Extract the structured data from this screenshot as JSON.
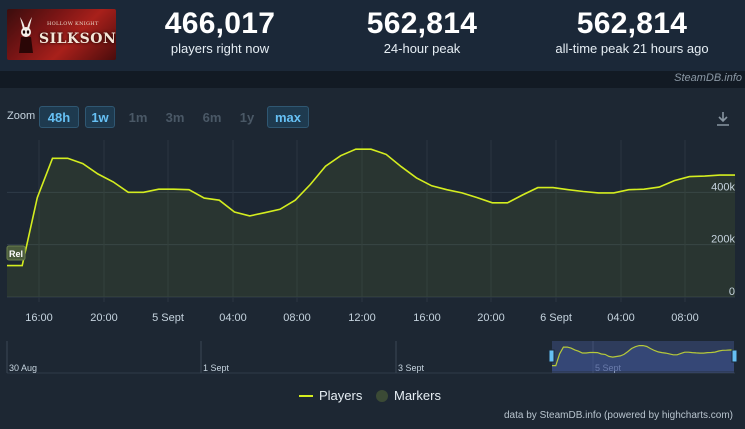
{
  "game": {
    "logo_title": "SILKSONG",
    "logo_subtitle": "HOLLOW KNIGHT"
  },
  "stats": [
    {
      "value": "466,017",
      "label": "players right now"
    },
    {
      "value": "562,814",
      "label": "24-hour peak"
    },
    {
      "value": "562,814",
      "label": "all-time peak 21 hours ago"
    }
  ],
  "attribution": "SteamDB.info",
  "zoom": {
    "label": "Zoom",
    "buttons": [
      {
        "label": "48h",
        "active": true
      },
      {
        "label": "1w",
        "active": true
      },
      {
        "label": "1m",
        "active": false
      },
      {
        "label": "3m",
        "active": false
      },
      {
        "label": "6m",
        "active": false
      },
      {
        "label": "1y",
        "active": false
      },
      {
        "label": "max",
        "active": true
      }
    ]
  },
  "chart_data": {
    "type": "area",
    "series": [
      {
        "name": "Players",
        "color": "#d4ed1f",
        "x": [
          "14:20",
          "15:00",
          "15:40",
          "16:20",
          "17:00",
          "17:40",
          "18:20",
          "19:00",
          "20:00",
          "21:00",
          "22:00",
          "23:00",
          "00:00",
          "01:00",
          "02:00",
          "03:00",
          "04:00",
          "05:00",
          "06:00",
          "07:00",
          "08:00",
          "09:00",
          "10:00",
          "11:00",
          "12:00",
          "13:00",
          "14:00",
          "15:00",
          "16:00",
          "17:00",
          "18:00",
          "19:00",
          "20:00",
          "21:00",
          "22:00",
          "23:00",
          "00:00",
          "01:00",
          "02:00",
          "03:00",
          "04:00",
          "05:00",
          "06:00",
          "07:00",
          "08:00",
          "09:00",
          "10:00",
          "11:00",
          "11:40"
        ],
        "values": [
          120000,
          120000,
          380000,
          530000,
          530000,
          510000,
          470000,
          440000,
          400000,
          400000,
          412000,
          412000,
          410000,
          378000,
          370000,
          325000,
          310000,
          322000,
          335000,
          370000,
          430000,
          500000,
          540000,
          565000,
          565000,
          545000,
          498000,
          455000,
          425000,
          410000,
          398000,
          380000,
          360000,
          360000,
          390000,
          418000,
          418000,
          410000,
          403000,
          398000,
          398000,
          410000,
          412000,
          420000,
          445000,
          460000,
          462000,
          466000,
          466000
        ]
      }
    ],
    "markers": [
      {
        "label": "Rel"
      }
    ],
    "y_ticks": [
      "0",
      "200k",
      "400k"
    ],
    "ylim": [
      0,
      600000
    ],
    "x_ticks": [
      "16:00",
      "20:00",
      "5 Sept",
      "04:00",
      "08:00",
      "12:00",
      "16:00",
      "20:00",
      "6 Sept",
      "04:00",
      "08:00"
    ],
    "navigator_labels": [
      "30 Aug",
      "1 Sept",
      "3 Sept",
      "5 Sept"
    ],
    "grid": true,
    "legend": [
      "Players",
      "Markers"
    ],
    "legend_placement": "bottom-center"
  },
  "credits": "data by SteamDB.info (powered by highcharts.com)"
}
